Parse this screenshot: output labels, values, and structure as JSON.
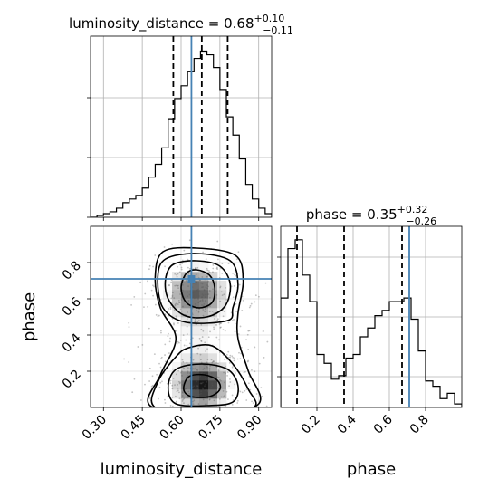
{
  "chart_data": {
    "type": "corner",
    "parameters": [
      "luminosity_distance",
      "phase"
    ],
    "truth": {
      "luminosity_distance": 0.64,
      "phase": 0.71
    },
    "titles": {
      "luminosity_distance": {
        "prefix": "luminosity_distance = 0.68",
        "plus": "+0.10",
        "minus": "−0.11"
      },
      "phase": {
        "prefix": "phase = 0.35",
        "plus": "+0.32",
        "minus": "−0.26"
      }
    },
    "xlabels": {
      "luminosity_distance": "luminosity_distance",
      "phase": "phase"
    },
    "ylabel": "phase",
    "luminosity_distance_hist": {
      "range": [
        0.25,
        0.95
      ],
      "quantiles": [
        0.57,
        0.68,
        0.78
      ],
      "bin_edges": [
        0.25,
        0.275,
        0.3,
        0.325,
        0.35,
        0.375,
        0.4,
        0.425,
        0.45,
        0.475,
        0.5,
        0.525,
        0.55,
        0.575,
        0.6,
        0.625,
        0.65,
        0.675,
        0.7,
        0.725,
        0.75,
        0.775,
        0.8,
        0.825,
        0.85,
        0.875,
        0.9,
        0.925,
        0.95
      ],
      "counts": [
        0,
        1,
        2,
        3,
        5,
        8,
        10,
        12,
        16,
        22,
        29,
        38,
        54,
        65,
        72,
        80,
        87,
        91,
        89,
        82,
        70,
        55,
        45,
        32,
        18,
        10,
        5,
        2
      ]
    },
    "phase_hist": {
      "range": [
        0.0,
        1.0
      ],
      "quantiles": [
        0.09,
        0.35,
        0.67
      ],
      "bin_edges": [
        0.0,
        0.04,
        0.08,
        0.12,
        0.16,
        0.2,
        0.24,
        0.28,
        0.32,
        0.36,
        0.4,
        0.44,
        0.48,
        0.52,
        0.56,
        0.6,
        0.64,
        0.68,
        0.72,
        0.76,
        0.8,
        0.84,
        0.88,
        0.92,
        0.96,
        1.0
      ],
      "counts": [
        62,
        90,
        95,
        75,
        60,
        30,
        25,
        16,
        18,
        28,
        30,
        40,
        45,
        52,
        55,
        60,
        60,
        62,
        50,
        32,
        15,
        12,
        5,
        8,
        2
      ]
    },
    "xticks_luminosity_distance": [
      "0.30",
      "0.45",
      "0.60",
      "0.75",
      "0.90"
    ],
    "xticks_phase": [
      "0.2",
      "0.4",
      "0.6",
      "0.8"
    ],
    "yticks_phase": [
      "0.2",
      "0.4",
      "0.6",
      "0.8"
    ]
  }
}
